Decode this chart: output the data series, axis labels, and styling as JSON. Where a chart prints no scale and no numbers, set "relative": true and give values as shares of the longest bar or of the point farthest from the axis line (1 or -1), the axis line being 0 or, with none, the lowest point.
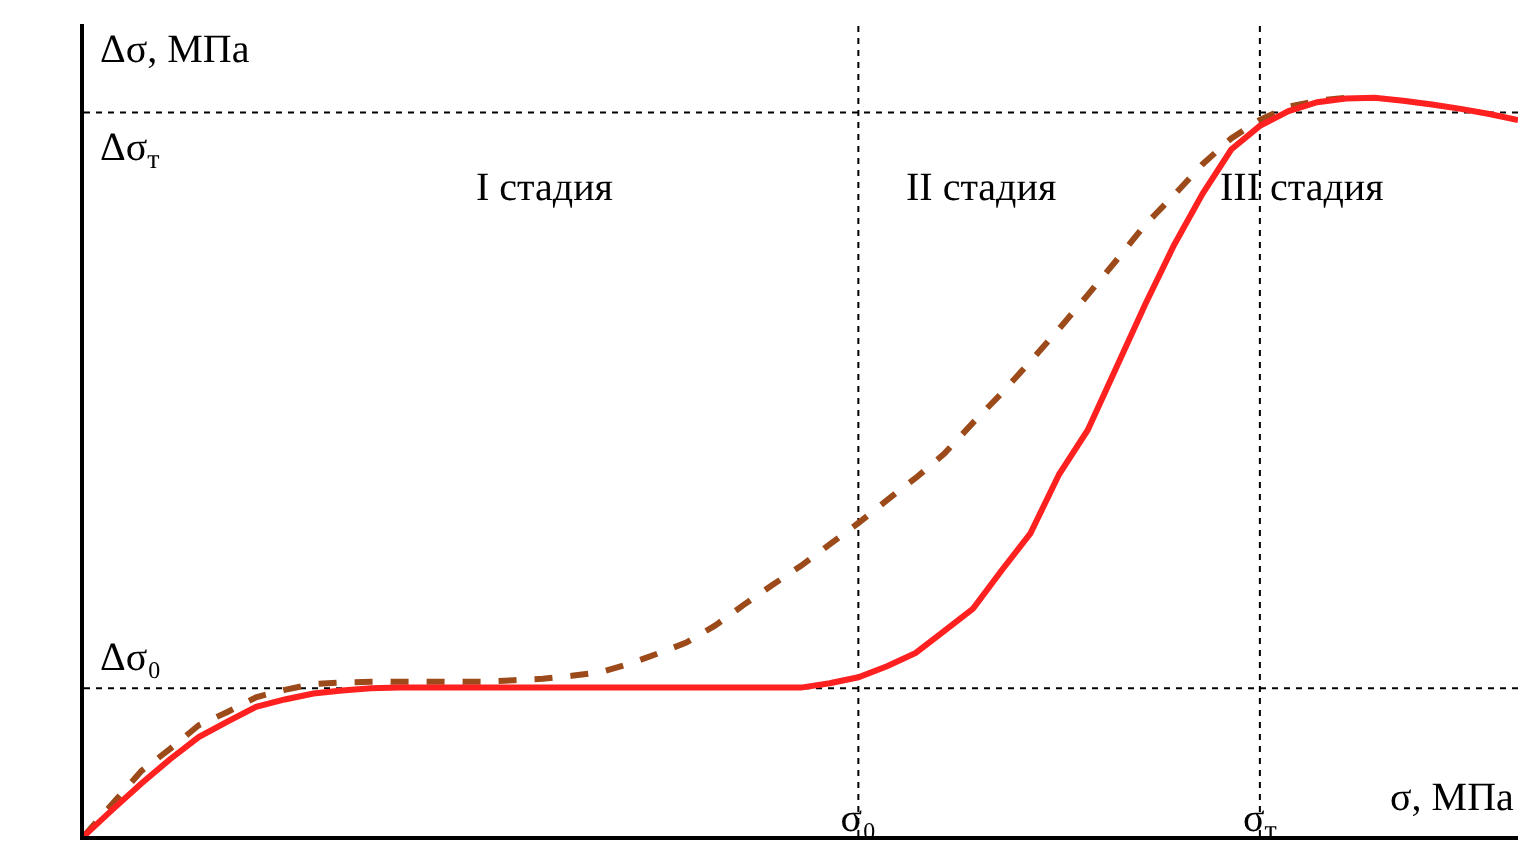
{
  "chart_data": {
    "type": "line",
    "relative": true,
    "xlabel": "σ, МПа",
    "ylabel": "Δσ, МПа",
    "annotations": [
      "I стадия",
      "II стадия",
      "III стадия"
    ],
    "categories": [
      null,
      null,
      null,
      null,
      null,
      null,
      null,
      null,
      null,
      null,
      null,
      null,
      null,
      null,
      null,
      null,
      null,
      null,
      null,
      null,
      null,
      null,
      null,
      null,
      null,
      null,
      null,
      "σ₀",
      null,
      null,
      null,
      null,
      null,
      null,
      null,
      null,
      null,
      null,
      null,
      null,
      null,
      "σ$_{т}$",
      null,
      null,
      null,
      null,
      null,
      null,
      null,
      null,
      null
    ],
    "ref_lines": [
      {
        "axis": "x",
        "value": "σ₀",
        "color": "#000000",
        "line_style": "dotted"
      },
      {
        "axis": "x",
        "value": "σ$_{т}$",
        "color": "#000000",
        "line_style": "dotted"
      },
      {
        "axis": "y",
        "value": 0.2,
        "label": "Δσ₀",
        "color": "#000000",
        "line_style": "dotted"
      },
      {
        "axis": "y",
        "value": 0.98,
        "label": "Δσ$_{т}$",
        "color": "#000000",
        "line_style": "dotted"
      }
    ],
    "grid": false,
    "marker": "none",
    "series": [
      {
        "color": "#9c4a1a",
        "line_style": "dashed",
        "values": [
          0,
          0.044,
          0.088,
          0.118,
          0.15,
          0.168,
          0.188,
          0.198,
          0.206,
          0.208,
          0.209,
          0.209,
          0.209,
          0.209,
          0.209,
          0.211,
          0.213,
          0.217,
          0.222,
          0.233,
          0.247,
          0.262,
          0.285,
          0.313,
          0.34,
          0.366,
          0.395,
          0.424,
          0.455,
          0.485,
          0.518,
          0.56,
          0.6,
          0.643,
          0.687,
          0.733,
          0.78,
          0.828,
          0.868,
          0.91,
          0.945,
          0.97,
          0.988,
          0.996,
          1.0,
          null,
          null,
          null,
          null,
          null,
          null
        ]
      },
      {
        "color": "#ff2020",
        "line_style": "solid",
        "values": [
          0,
          0.036,
          0.071,
          0.104,
          0.134,
          0.155,
          0.175,
          0.185,
          0.193,
          0.197,
          0.2,
          0.201,
          0.201,
          0.201,
          0.201,
          0.201,
          0.201,
          0.201,
          0.201,
          0.201,
          0.201,
          0.201,
          0.201,
          0.201,
          0.201,
          0.201,
          0.207,
          0.215,
          0.23,
          0.248,
          0.278,
          0.308,
          0.36,
          0.41,
          0.49,
          0.55,
          0.635,
          0.72,
          0.8,
          0.87,
          0.93,
          0.962,
          0.982,
          0.994,
          0.999,
          1.0,
          0.996,
          0.991,
          0.985,
          0.978,
          0.97
        ]
      }
    ]
  }
}
